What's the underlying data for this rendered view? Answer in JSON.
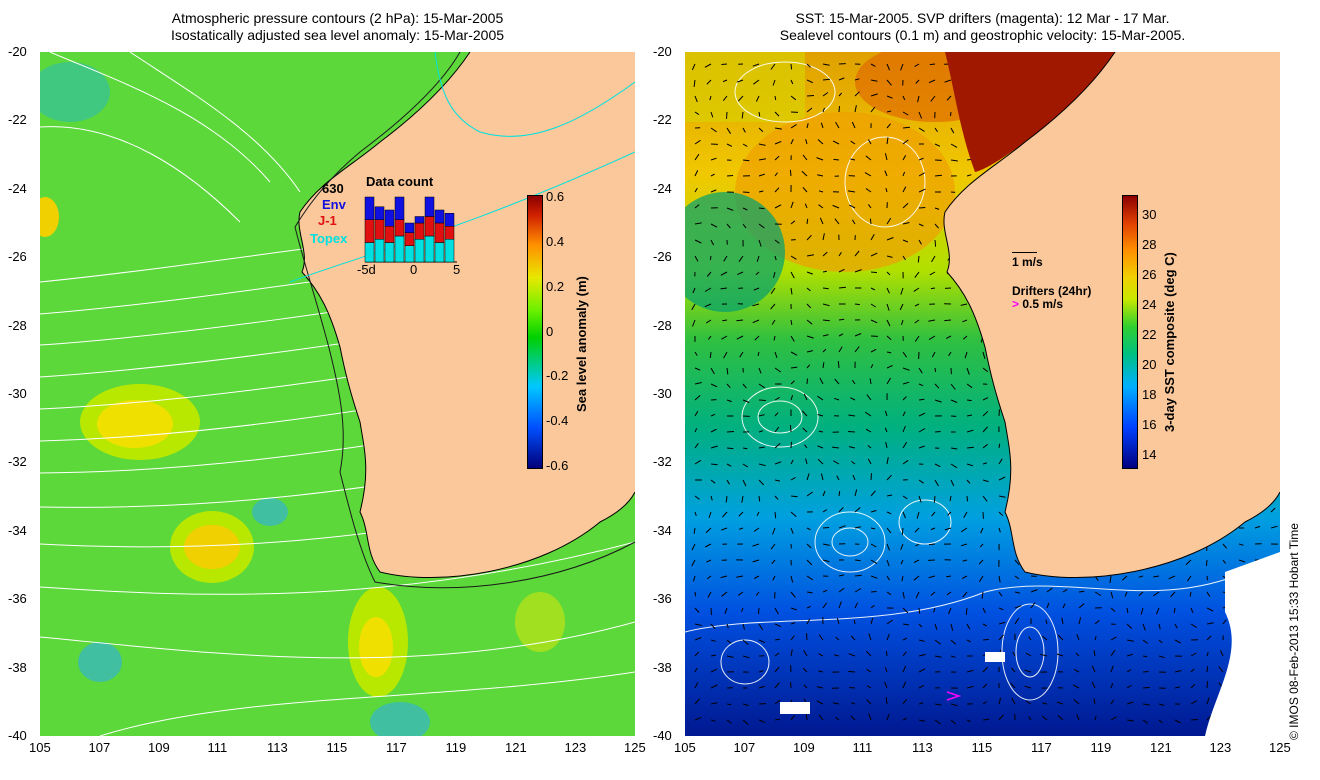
{
  "left_panel": {
    "title_line1": "Atmospheric pressure contours (2 hPa): 15-Mar-2005",
    "title_line2": "Isostatically adjusted sea level anomaly: 15-Mar-2005",
    "colorbar": {
      "label": "Sea level anomaly (m)",
      "ticks": [
        "0.6",
        "0.4",
        "0.2",
        "0",
        "-0.2",
        "-0.4",
        "-0.6"
      ],
      "range": [
        -0.6,
        0.6
      ]
    },
    "data_count": {
      "title": "Data count",
      "total": "630",
      "legend": [
        {
          "name": "Env",
          "color": "#1010e0"
        },
        {
          "name": "J-1",
          "color": "#e01010"
        },
        {
          "name": "Topex",
          "color": "#00e0e0"
        }
      ],
      "x_ticks": [
        "-5d",
        "0",
        "5"
      ],
      "bars": [
        {
          "topex": 0.3,
          "j1": 0.35,
          "env": 0.35
        },
        {
          "topex": 0.35,
          "j1": 0.3,
          "env": 0.2
        },
        {
          "topex": 0.3,
          "j1": 0.25,
          "env": 0.25
        },
        {
          "topex": 0.4,
          "j1": 0.25,
          "env": 0.35
        },
        {
          "topex": 0.25,
          "j1": 0.2,
          "env": 0.15
        },
        {
          "topex": 0.35,
          "j1": 0.25,
          "env": 0.1
        },
        {
          "topex": 0.4,
          "j1": 0.3,
          "env": 0.3
        },
        {
          "topex": 0.3,
          "j1": 0.3,
          "env": 0.2
        },
        {
          "topex": 0.35,
          "j1": 0.2,
          "env": 0.2
        }
      ]
    }
  },
  "right_panel": {
    "title_line1": "SST: 15-Mar-2005. SVP drifters (magenta): 12 Mar - 17 Mar.",
    "title_line2": "Sealevel contours (0.1 m) and geostrophic velocity: 15-Mar-2005.",
    "colorbar": {
      "label": "3-day SST composite (deg C)",
      "ticks": [
        "30",
        "28",
        "26",
        "24",
        "22",
        "20",
        "18",
        "16",
        "14"
      ],
      "range": [
        13,
        31
      ]
    },
    "velocity_key": "1 m/s",
    "drifters_label": "Drifters (24hr)",
    "drifters_key": "0.5 m/s",
    "drifter_color": "#ff00ff"
  },
  "axes": {
    "lat_ticks": [
      "-20",
      "-22",
      "-24",
      "-26",
      "-28",
      "-30",
      "-32",
      "-34",
      "-36",
      "-38",
      "-40"
    ],
    "lon_ticks": [
      "105",
      "107",
      "109",
      "111",
      "113",
      "115",
      "117",
      "119",
      "121",
      "123",
      "125"
    ]
  },
  "colors": {
    "land": "#fac89b",
    "ocean_left": "#5cd83a",
    "ocean_right": "#00a0e0"
  },
  "credit": "© IMOS 08-Feb-2013 15:33 Hobart Time"
}
